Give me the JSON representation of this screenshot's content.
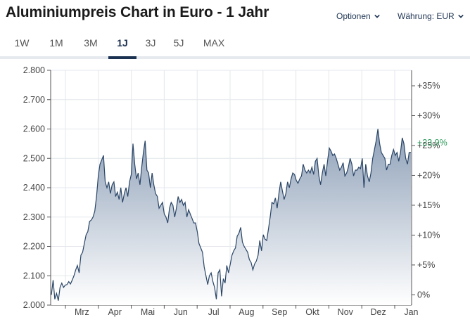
{
  "header": {
    "title": "Aluminiumpreis Chart in Euro - 1 Jahr",
    "options_label": "Optionen",
    "currency_label": "Währung: EUR"
  },
  "tabs": [
    {
      "label": "1W",
      "active": false
    },
    {
      "label": "1M",
      "active": false
    },
    {
      "label": "3M",
      "active": false
    },
    {
      "label": "1J",
      "active": true
    },
    {
      "label": "3J",
      "active": false
    },
    {
      "label": "5J",
      "active": false
    },
    {
      "label": "MAX",
      "active": false
    }
  ],
  "colors": {
    "line": "#2a4566",
    "area_top": "#8ea0b8",
    "area_bottom": "#ffffff",
    "current_value": "#2e9a5a",
    "accent": "#1c3252"
  },
  "chart_data": {
    "type": "area",
    "title": "",
    "xlabel": "",
    "ylabel": "",
    "grid": true,
    "x_labels": [
      "Mrz",
      "Apr",
      "Mai",
      "Jun",
      "Jul",
      "Aug",
      "Sep",
      "Okt",
      "Nov",
      "Dez",
      "Jan"
    ],
    "y_ticks": [
      "2.800",
      "2.700",
      "2.600",
      "2.500",
      "2.400",
      "2.300",
      "2.200",
      "2.100",
      "2.000"
    ],
    "ylim": [
      2000,
      2800
    ],
    "y2_ticks": [
      "+35%",
      "+30%",
      "+25%",
      "+20%",
      "+15%",
      "+10%",
      "+5%",
      "0%"
    ],
    "current_change_label": "+23,9%",
    "series": [
      {
        "values": [
          2035,
          2085,
          2020,
          2040,
          2015,
          2060,
          2075,
          2060,
          2068,
          2070,
          2080,
          2072,
          2085,
          2100,
          2120,
          2135,
          2110,
          2170,
          2180,
          2210,
          2240,
          2250,
          2285,
          2290,
          2300,
          2320,
          2370,
          2440,
          2480,
          2495,
          2510,
          2420,
          2400,
          2420,
          2380,
          2410,
          2420,
          2370,
          2385,
          2360,
          2400,
          2350,
          2380,
          2400,
          2370,
          2420,
          2445,
          2550,
          2480,
          2430,
          2450,
          2410,
          2470,
          2520,
          2560,
          2460,
          2450,
          2400,
          2450,
          2410,
          2380,
          2370,
          2330,
          2340,
          2350,
          2310,
          2300,
          2280,
          2330,
          2350,
          2340,
          2300,
          2330,
          2370,
          2350,
          2360,
          2340,
          2350,
          2300,
          2325,
          2310,
          2295,
          2280,
          2280,
          2250,
          2210,
          2195,
          2180,
          2130,
          2100,
          2070,
          2100,
          2110,
          2080,
          2060,
          2020,
          2110,
          2120,
          2030,
          2090,
          2075,
          2135,
          2110,
          2140,
          2170,
          2185,
          2195,
          2235,
          2245,
          2265,
          2215,
          2200,
          2190,
          2180,
          2155,
          2145,
          2120,
          2140,
          2150,
          2170,
          2220,
          2185,
          2240,
          2225,
          2220,
          2260,
          2300,
          2350,
          2345,
          2365,
          2330,
          2380,
          2420,
          2390,
          2360,
          2380,
          2420,
          2400,
          2430,
          2450,
          2445,
          2425,
          2415,
          2430,
          2440,
          2480,
          2460,
          2450,
          2460,
          2450,
          2470,
          2445,
          2490,
          2500,
          2440,
          2410,
          2450,
          2480,
          2440,
          2490,
          2535,
          2525,
          2510,
          2515,
          2500,
          2480,
          2460,
          2470,
          2485,
          2440,
          2450,
          2470,
          2500,
          2480,
          2440,
          2460,
          2460,
          2470,
          2465,
          2500,
          2400,
          2480,
          2440,
          2420,
          2450,
          2500,
          2530,
          2560,
          2600,
          2550,
          2520,
          2510,
          2500,
          2460,
          2480,
          2480,
          2510,
          2530,
          2510,
          2520,
          2490,
          2520,
          2570,
          2550,
          2500,
          2480,
          2520,
          2520
        ]
      }
    ]
  }
}
